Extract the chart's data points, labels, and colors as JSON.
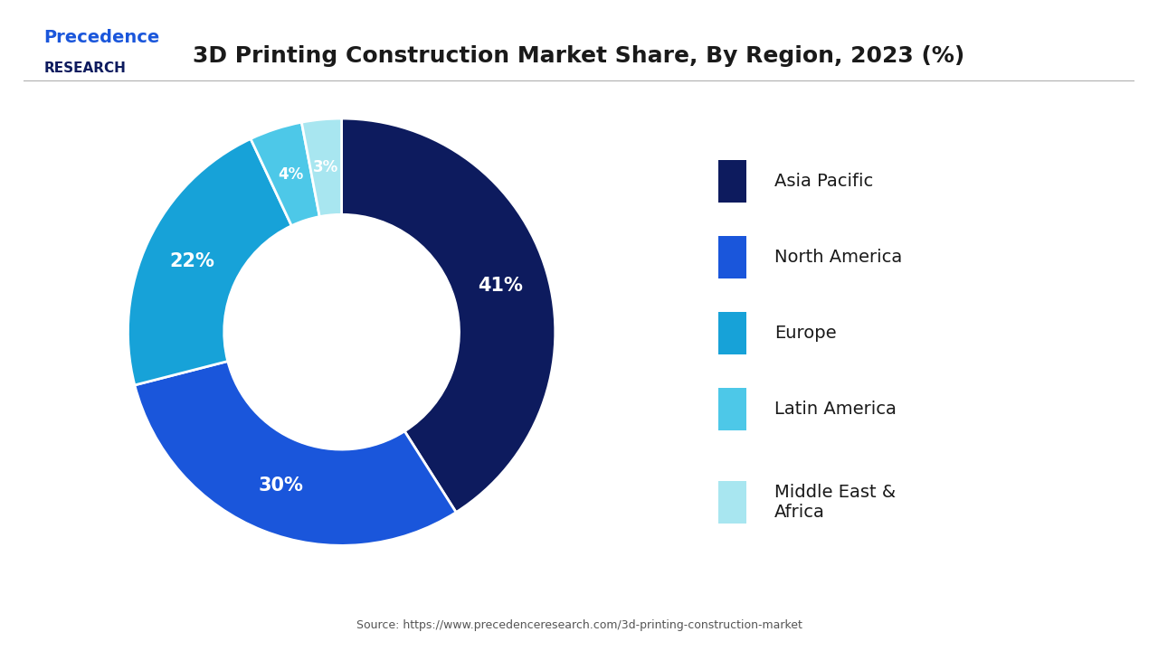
{
  "title": "3D Printing Construction Market Share, By Region, 2023 (%)",
  "labels": [
    "Asia Pacific",
    "North America",
    "Europe",
    "Latin America",
    "Middle East &\nAfrica"
  ],
  "values": [
    41,
    30,
    22,
    4,
    3
  ],
  "colors": [
    "#0d1b5e",
    "#1a56db",
    "#17a2d8",
    "#4dc8e8",
    "#a8e6f0"
  ],
  "pct_labels": [
    "41%",
    "30%",
    "22%",
    "4%",
    "3%"
  ],
  "source_text": "Source: https://www.precedenceresearch.com/3d-printing-construction-market",
  "logo_text_line1": "Precedence",
  "logo_text_line2": "RESEARCH",
  "background_color": "#ffffff",
  "text_color_white": "#ffffff",
  "text_color_dark": "#1a1a1a"
}
